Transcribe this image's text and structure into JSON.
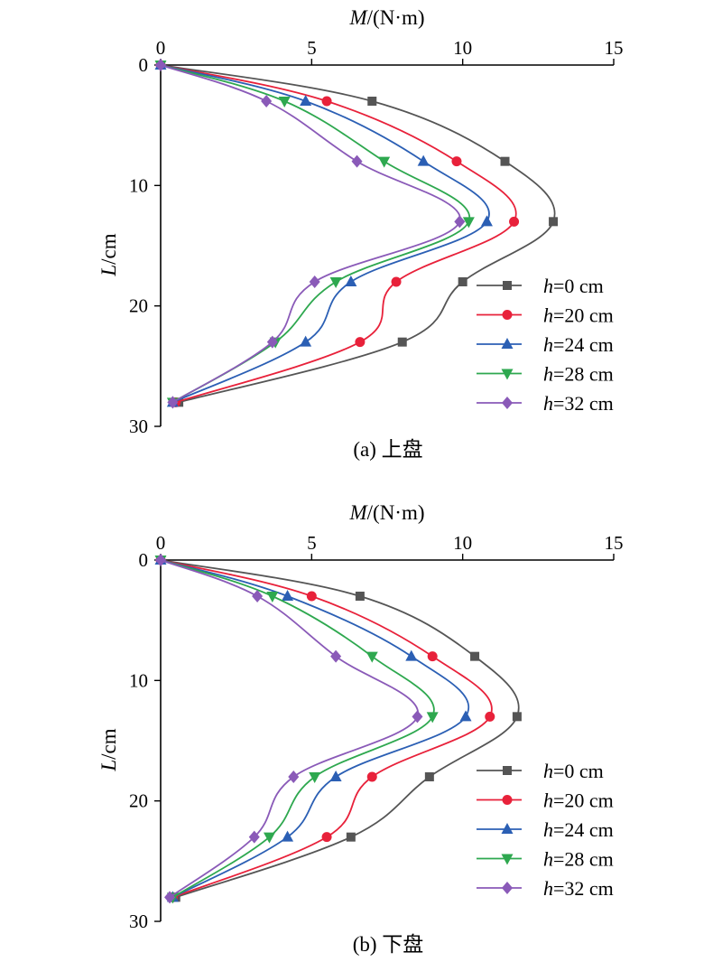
{
  "chart_data": [
    {
      "type": "line",
      "caption": "(a) 上盘",
      "xlabel_italic": "M",
      "xlabel_rest": "/(N·m)",
      "ylabel_italic": "L",
      "ylabel_rest": "/cm",
      "xlim": [
        0,
        15
      ],
      "ylim": [
        0,
        30
      ],
      "x_ticks": [
        0,
        5,
        10,
        15
      ],
      "y_ticks": [
        0,
        10,
        20,
        30
      ],
      "x_axis_position": "top",
      "y_inverted": true,
      "grid": false,
      "legend_position": "bottom-right",
      "series": [
        {
          "name": "h=0 cm",
          "legend_italic": "h",
          "legend_rest": "=0 cm",
          "color": "#555555",
          "marker": "square",
          "points": [
            [
              0,
              0
            ],
            [
              7.0,
              3
            ],
            [
              11.4,
              8
            ],
            [
              13.0,
              13
            ],
            [
              10.0,
              18
            ],
            [
              8.0,
              23
            ],
            [
              0.6,
              28
            ]
          ]
        },
        {
          "name": "h=20 cm",
          "legend_italic": "h",
          "legend_rest": "=20 cm",
          "color": "#e8213a",
          "marker": "circle",
          "points": [
            [
              0,
              0
            ],
            [
              5.5,
              3
            ],
            [
              9.8,
              8
            ],
            [
              11.7,
              13
            ],
            [
              7.8,
              18
            ],
            [
              6.6,
              23
            ],
            [
              0.5,
              28
            ]
          ]
        },
        {
          "name": "h=24 cm",
          "legend_italic": "h",
          "legend_rest": "=24 cm",
          "color": "#2b5fb4",
          "marker": "triangle-up",
          "points": [
            [
              0,
              0
            ],
            [
              4.8,
              3
            ],
            [
              8.7,
              8
            ],
            [
              10.8,
              13
            ],
            [
              6.3,
              18
            ],
            [
              4.8,
              23
            ],
            [
              0.4,
              28
            ]
          ]
        },
        {
          "name": "h=28 cm",
          "legend_italic": "h",
          "legend_rest": "=28 cm",
          "color": "#2ea84f",
          "marker": "triangle-down",
          "points": [
            [
              0,
              0
            ],
            [
              4.1,
              3
            ],
            [
              7.4,
              8
            ],
            [
              10.2,
              13
            ],
            [
              5.8,
              18
            ],
            [
              3.8,
              23
            ],
            [
              0.4,
              28
            ]
          ]
        },
        {
          "name": "h=32 cm",
          "legend_italic": "h",
          "legend_rest": "=32 cm",
          "color": "#8a5ab8",
          "marker": "diamond",
          "points": [
            [
              0,
              0
            ],
            [
              3.5,
              3
            ],
            [
              6.5,
              8
            ],
            [
              9.9,
              13
            ],
            [
              5.1,
              18
            ],
            [
              3.7,
              23
            ],
            [
              0.4,
              28
            ]
          ]
        }
      ]
    },
    {
      "type": "line",
      "caption": "(b) 下盘",
      "xlabel_italic": "M",
      "xlabel_rest": "/(N·m)",
      "ylabel_italic": "L",
      "ylabel_rest": "/cm",
      "xlim": [
        0,
        15
      ],
      "ylim": [
        0,
        30
      ],
      "x_ticks": [
        0,
        5,
        10,
        15
      ],
      "y_ticks": [
        0,
        10,
        20,
        30
      ],
      "x_axis_position": "top",
      "y_inverted": true,
      "grid": false,
      "legend_position": "bottom-right",
      "series": [
        {
          "name": "h=0 cm",
          "legend_italic": "h",
          "legend_rest": "=0 cm",
          "color": "#555555",
          "marker": "square",
          "points": [
            [
              0,
              0
            ],
            [
              6.6,
              3
            ],
            [
              10.4,
              8
            ],
            [
              11.8,
              13
            ],
            [
              8.9,
              18
            ],
            [
              6.3,
              23
            ],
            [
              0.5,
              28
            ]
          ]
        },
        {
          "name": "h=20 cm",
          "legend_italic": "h",
          "legend_rest": "=20 cm",
          "color": "#e8213a",
          "marker": "circle",
          "points": [
            [
              0,
              0
            ],
            [
              5.0,
              3
            ],
            [
              9.0,
              8
            ],
            [
              10.9,
              13
            ],
            [
              7.0,
              18
            ],
            [
              5.5,
              23
            ],
            [
              0.4,
              28
            ]
          ]
        },
        {
          "name": "h=24 cm",
          "legend_italic": "h",
          "legend_rest": "=24 cm",
          "color": "#2b5fb4",
          "marker": "triangle-up",
          "points": [
            [
              0,
              0
            ],
            [
              4.2,
              3
            ],
            [
              8.3,
              8
            ],
            [
              10.1,
              13
            ],
            [
              5.8,
              18
            ],
            [
              4.2,
              23
            ],
            [
              0.4,
              28
            ]
          ]
        },
        {
          "name": "h=28 cm",
          "legend_italic": "h",
          "legend_rest": "=28 cm",
          "color": "#2ea84f",
          "marker": "triangle-down",
          "points": [
            [
              0,
              0
            ],
            [
              3.7,
              3
            ],
            [
              7.0,
              8
            ],
            [
              9.0,
              13
            ],
            [
              5.1,
              18
            ],
            [
              3.6,
              23
            ],
            [
              0.4,
              28
            ]
          ]
        },
        {
          "name": "h=32 cm",
          "legend_italic": "h",
          "legend_rest": "=32 cm",
          "color": "#8a5ab8",
          "marker": "diamond",
          "points": [
            [
              0,
              0
            ],
            [
              3.2,
              3
            ],
            [
              5.8,
              8
            ],
            [
              8.5,
              13
            ],
            [
              4.4,
              18
            ],
            [
              3.1,
              23
            ],
            [
              0.3,
              28
            ]
          ]
        }
      ]
    }
  ]
}
